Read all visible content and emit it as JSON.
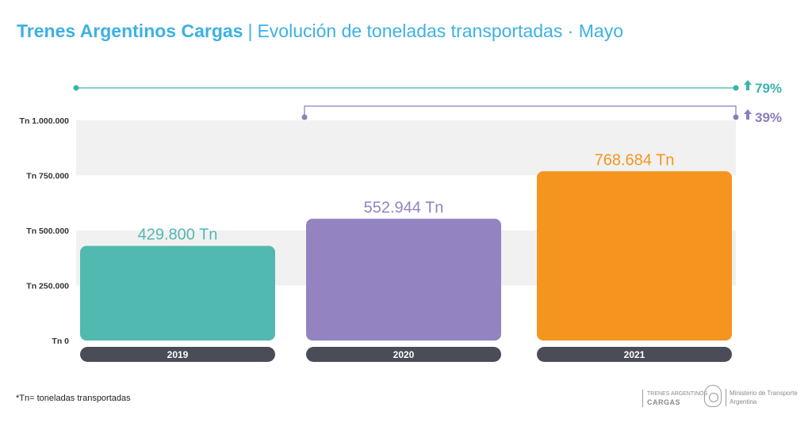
{
  "header": {
    "brand": "Trenes Argentinos Cargas",
    "separator": "|",
    "subtitle": "Evolución de toneladas transportadas · Mayo"
  },
  "footnote": "*Tn= toneladas transportadas",
  "logos": {
    "tac_line1": "TRENES ARGENTINOS",
    "tac_line2": "CARGAS",
    "ministry_line1": "Ministerio de Transporte",
    "ministry_line2": "Argentina"
  },
  "chart_data": {
    "type": "bar",
    "categories": [
      "2019",
      "2020",
      "2021"
    ],
    "values": [
      429800,
      552944,
      768684
    ],
    "data_labels": [
      "429.800 Tn",
      "552.944 Tn",
      "768.684 Tn"
    ],
    "colors": [
      "#52b9b0",
      "#9383c0",
      "#f5951f"
    ],
    "ylim": [
      0,
      1000000
    ],
    "yticks": [
      0,
      250000,
      500000,
      750000,
      1000000
    ],
    "ytick_labels": [
      "Tn 0",
      "Tn 250.000",
      "Tn 500.000",
      "Tn 750.000",
      "Tn 1.000.000"
    ],
    "comparisons": [
      {
        "from": "2019",
        "to": "2021",
        "label": "79%",
        "color": "#3bb3aa"
      },
      {
        "from": "2020",
        "to": "2021",
        "label": "39%",
        "color": "#8c7dbd"
      }
    ],
    "grid": "alternating bands",
    "category_pill_color": "#4a4d57"
  }
}
